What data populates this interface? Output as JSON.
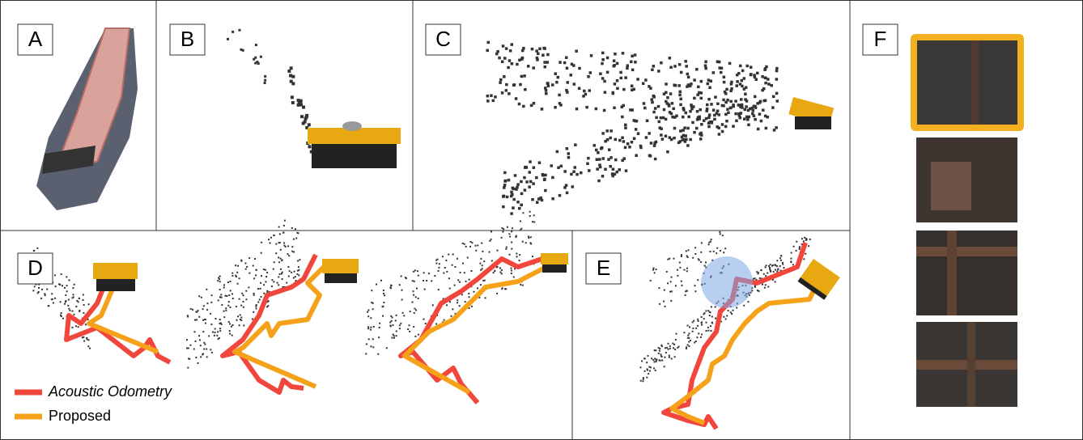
{
  "panels": [
    {
      "label": "A"
    },
    {
      "label": "B"
    },
    {
      "label": "C"
    },
    {
      "label": "D"
    },
    {
      "label": "E"
    },
    {
      "label": "F"
    }
  ],
  "legend": [
    {
      "label": "Acoustic Odometry",
      "color": "#f0463c"
    },
    {
      "label": "Proposed",
      "color": "#f5a21a"
    }
  ]
}
